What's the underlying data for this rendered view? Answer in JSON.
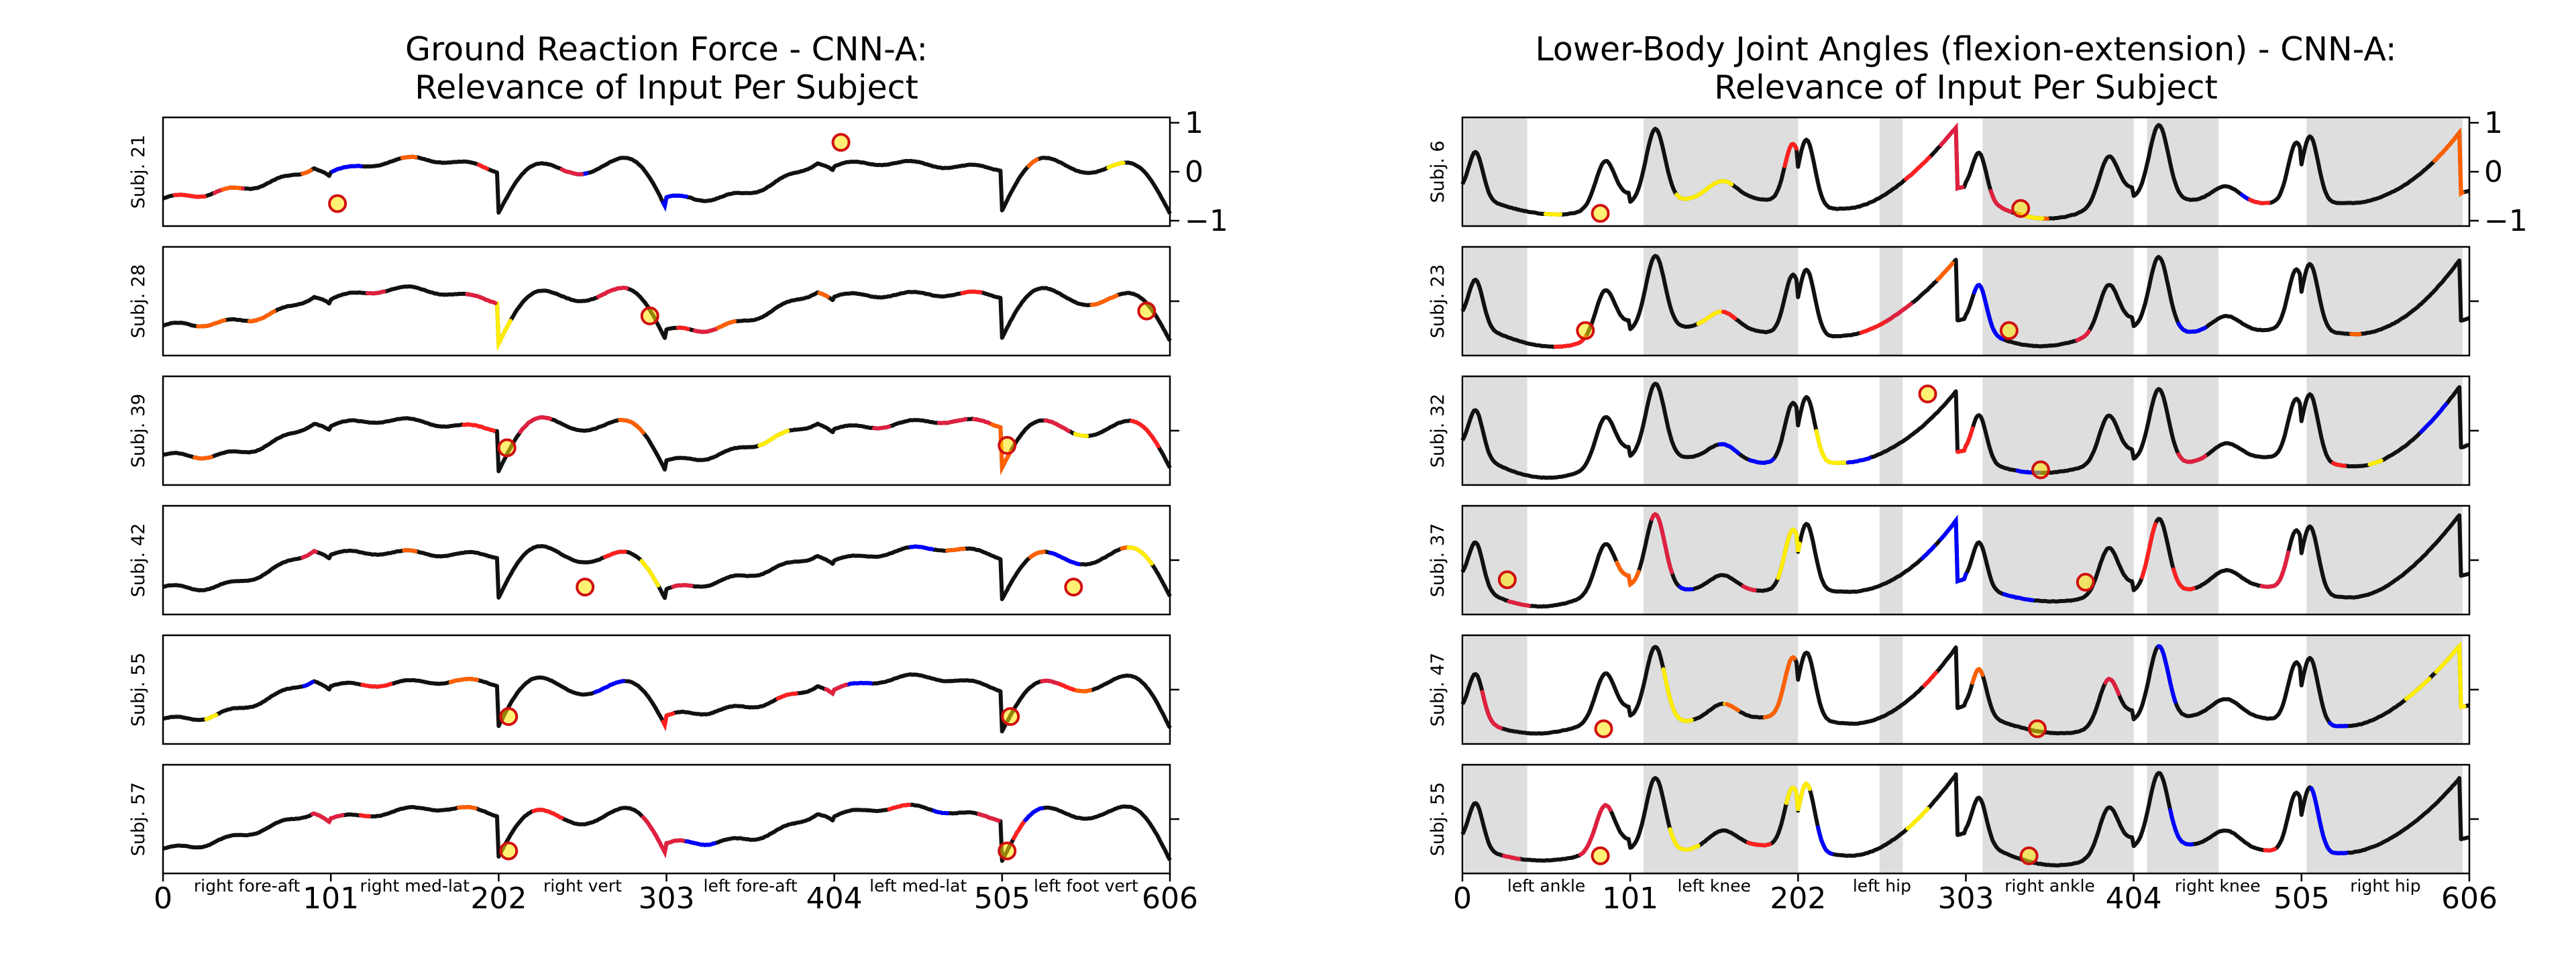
{
  "chart_data": [
    {
      "type": "line",
      "title": "Ground Reaction Force - CNN-A:\nRelevance of Input Per Subject",
      "subjects": [
        "Subj. 21",
        "Subj. 28",
        "Subj. 39",
        "Subj. 42",
        "Subj. 55",
        "Subj. 57"
      ],
      "xlim": [
        0,
        606
      ],
      "xticks": [
        0,
        101,
        202,
        303,
        404,
        505,
        606
      ],
      "ylim": [
        -1,
        1
      ],
      "yticks": [
        1,
        0,
        -1
      ],
      "segment_labels": [
        {
          "x": 50.5,
          "text": "right fore-aft"
        },
        {
          "x": 151.5,
          "text": "right med-lat"
        },
        {
          "x": 252.5,
          "text": "right vert"
        },
        {
          "x": 353.5,
          "text": "left fore-aft"
        },
        {
          "x": 454.5,
          "text": "left med-lat"
        },
        {
          "x": 555.5,
          "text": "left foot vert"
        }
      ],
      "highlight_points": [
        [
          [
            105,
            -0.65
          ],
          [
            408,
            0.6
          ]
        ],
        [
          [
            293,
            -0.3
          ],
          [
            592,
            -0.2
          ]
        ],
        [
          [
            207,
            -0.35
          ],
          [
            508,
            -0.3
          ]
        ],
        [
          [
            254,
            -0.55
          ],
          [
            548,
            -0.55
          ]
        ],
        [
          [
            208,
            -0.55
          ],
          [
            510,
            -0.55
          ]
        ],
        [
          [
            208,
            -0.65
          ],
          [
            508,
            -0.65
          ]
        ]
      ],
      "shaded": false
    },
    {
      "type": "line",
      "title": "Lower-Body Joint Angles (flexion-extension) - CNN-A:\nRelevance of Input Per Subject",
      "subjects": [
        "Subj. 6",
        "Subj. 23",
        "Subj. 32",
        "Subj. 37",
        "Subj. 47",
        "Subj. 55"
      ],
      "xlim": [
        0,
        606
      ],
      "xticks": [
        0,
        101,
        202,
        303,
        404,
        505,
        606
      ],
      "ylim": [
        -1,
        1
      ],
      "yticks": [
        1,
        0,
        -1
      ],
      "segment_labels": [
        {
          "x": 50.5,
          "text": "left ankle"
        },
        {
          "x": 151.5,
          "text": "left knee"
        },
        {
          "x": 252.5,
          "text": "left hip"
        },
        {
          "x": 353.5,
          "text": "right ankle"
        },
        {
          "x": 454.5,
          "text": "right knee"
        },
        {
          "x": 555.5,
          "text": "right hip"
        }
      ],
      "highlight_points": [
        [
          [
            83,
            -0.85
          ],
          [
            336,
            -0.75
          ]
        ],
        [
          [
            74,
            -0.6
          ],
          [
            329,
            -0.6
          ]
        ],
        [
          [
            280,
            0.75
          ],
          [
            348,
            -0.8
          ]
        ],
        [
          [
            27,
            -0.4
          ],
          [
            375,
            -0.45
          ]
        ],
        [
          [
            85,
            -0.8
          ],
          [
            346,
            -0.8
          ]
        ],
        [
          [
            83,
            -0.75
          ],
          [
            341,
            -0.75
          ]
        ]
      ],
      "shaded": true
    }
  ]
}
